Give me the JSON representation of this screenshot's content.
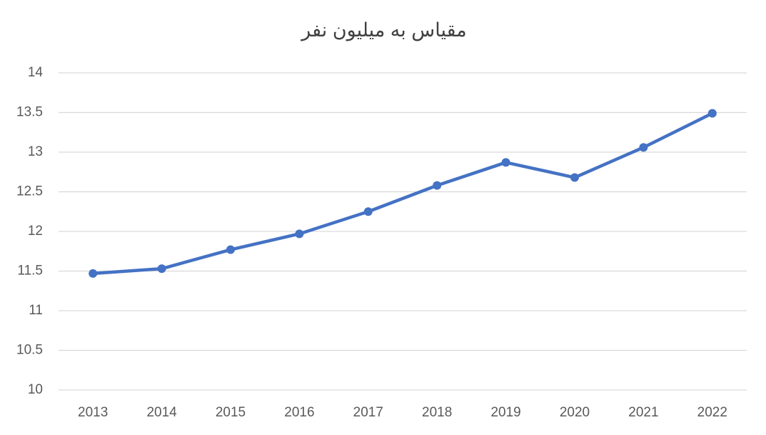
{
  "chart_data": {
    "type": "line",
    "title": "مقیاس به میلیون نفر",
    "categories": [
      "2013",
      "2014",
      "2015",
      "2016",
      "2017",
      "2018",
      "2019",
      "2020",
      "2021",
      "2022"
    ],
    "values": [
      11.47,
      11.53,
      11.77,
      11.97,
      12.25,
      12.58,
      12.87,
      12.68,
      13.06,
      13.49
    ],
    "color": "#4472c4",
    "ylim": [
      10,
      14
    ],
    "yticks": [
      10,
      10.5,
      11,
      11.5,
      12,
      12.5,
      13,
      13.5,
      14
    ],
    "grid": true
  }
}
